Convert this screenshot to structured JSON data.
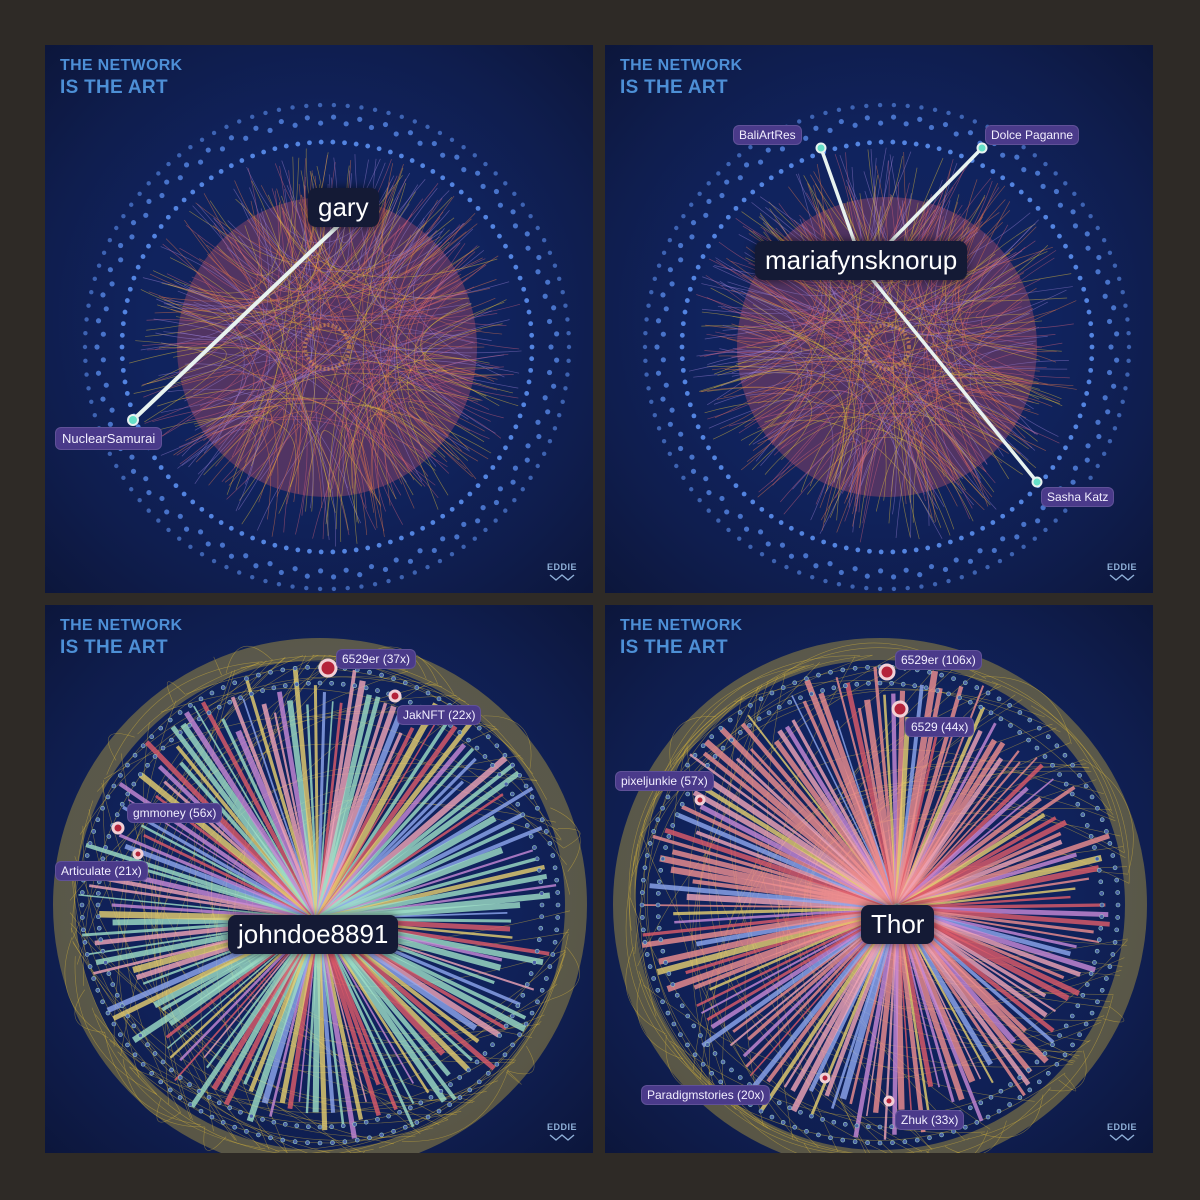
{
  "panels": [
    {
      "brand_line1": "THE NETWORK",
      "brand_line2": "IS THE ART",
      "focus_label": "gary",
      "tags": [
        "NuclearSamurai"
      ],
      "signature": "EDDIE"
    },
    {
      "brand_line1": "THE NETWORK",
      "brand_line2": "IS THE ART",
      "focus_label": "mariafynsknorup",
      "tags": [
        "BaliArtRes",
        "Dolce Paganne",
        "Sasha Katz"
      ],
      "signature": "EDDIE"
    },
    {
      "brand_line1": "THE NETWORK",
      "brand_line2": "IS THE ART",
      "focus_label": "johndoe8891",
      "tags": [
        "6529er (37x)",
        "JakNFT (22x)",
        "gmmoney (56x)",
        "Articulate (21x)"
      ],
      "signature": "EDDIE"
    },
    {
      "brand_line1": "THE NETWORK",
      "brand_line2": "IS THE ART",
      "focus_label": "Thor",
      "tags": [
        "6529er (106x)",
        "6529 (44x)",
        "pixeljunkie (57x)",
        "Paradigmstories (20x)",
        "Zhuk (33x)"
      ],
      "signature": "EDDIE"
    }
  ],
  "colors": {
    "frame": "#2e2a26",
    "panel_bg": "#10235e",
    "brand_text": "#4d8fd6",
    "node_dots": "#5b8ff0",
    "edge_orange": "#e8784a",
    "edge_yellow": "#e6c23a",
    "edge_purple": "#9a7fd6",
    "tag_bg": "#4a3a8a",
    "focus_label_bg": "#141a35",
    "highlight_line": "#e8f3f0"
  }
}
